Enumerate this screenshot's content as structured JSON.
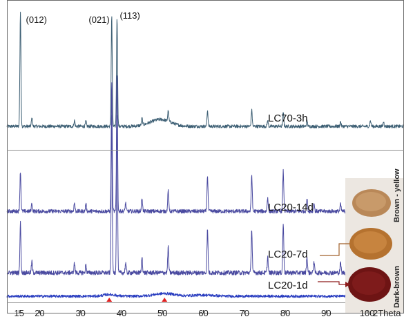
{
  "chart_data": {
    "type": "line",
    "xlabel": "2Theta",
    "xlim": [
      12,
      109
    ],
    "ticks": [
      "15",
      "20",
      "30",
      "40",
      "50",
      "60",
      "70",
      "80",
      "90",
      "100"
    ],
    "tick_values": [
      15,
      20,
      30,
      40,
      50,
      60,
      70,
      80,
      90,
      100
    ],
    "peak_labels": [
      {
        "text": "(012)",
        "x": 15.3
      },
      {
        "text": "(021)",
        "x": 37.6
      },
      {
        "text": "(113)",
        "x": 38.9
      }
    ],
    "series": [
      {
        "name": "LC70-3h",
        "color": "#3d5f74",
        "peaks": [
          [
            15.3,
            1.0
          ],
          [
            18.1,
            0.07
          ],
          [
            28.5,
            0.05
          ],
          [
            31.3,
            0.045
          ],
          [
            37.6,
            0.97
          ],
          [
            38.9,
            0.95
          ],
          [
            45.0,
            0.06
          ],
          [
            51.4,
            0.09
          ],
          [
            61.0,
            0.14
          ],
          [
            71.8,
            0.14
          ],
          [
            75.7,
            0.05
          ],
          [
            79.5,
            0.12
          ],
          [
            85.3,
            0.05
          ],
          [
            93.5,
            0.04
          ],
          [
            100.8,
            0.05
          ],
          [
            104.0,
            0.04
          ]
        ]
      },
      {
        "name": "LC20-14d",
        "color": "#4a4aa0",
        "peaks": [
          [
            15.3,
            0.29
          ],
          [
            18.1,
            0.06
          ],
          [
            28.5,
            0.06
          ],
          [
            31.3,
            0.05
          ],
          [
            37.6,
            0.93
          ],
          [
            38.9,
            1.0
          ],
          [
            41.0,
            0.06
          ],
          [
            45.0,
            0.1
          ],
          [
            51.4,
            0.15
          ],
          [
            61.0,
            0.26
          ],
          [
            71.8,
            0.26
          ],
          [
            75.7,
            0.1
          ],
          [
            79.5,
            0.29
          ],
          [
            85.3,
            0.09
          ],
          [
            87.0,
            0.06
          ],
          [
            93.5,
            0.05
          ],
          [
            97.0,
            0.06
          ],
          [
            98.5,
            0.05
          ],
          [
            100.8,
            0.11
          ]
        ]
      },
      {
        "name": "LC20-7d",
        "color": "#4a4aa0",
        "peaks": [
          [
            15.3,
            0.31
          ],
          [
            18.1,
            0.07
          ],
          [
            28.5,
            0.06
          ],
          [
            31.3,
            0.05
          ],
          [
            37.6,
            0.98
          ],
          [
            38.9,
            1.0
          ],
          [
            41.0,
            0.06
          ],
          [
            45.0,
            0.1
          ],
          [
            51.4,
            0.16
          ],
          [
            61.0,
            0.27
          ],
          [
            71.8,
            0.27
          ],
          [
            75.7,
            0.1
          ],
          [
            79.5,
            0.31
          ],
          [
            85.3,
            0.1
          ],
          [
            87.0,
            0.07
          ],
          [
            93.5,
            0.06
          ],
          [
            97.0,
            0.07
          ],
          [
            98.5,
            0.06
          ],
          [
            100.8,
            0.12
          ]
        ]
      },
      {
        "name": "LC20-1d",
        "color": "#2a3ec0",
        "peaks": [
          [
            37.0,
            0.18
          ],
          [
            50.5,
            0.28
          ],
          [
            60.0,
            0.12
          ]
        ]
      }
    ],
    "markers": [
      {
        "x": 37.0,
        "color": "#e02020"
      },
      {
        "x": 50.5,
        "color": "#e02020"
      }
    ]
  },
  "photo": {
    "labels": {
      "top": "Brown - yellow",
      "bottom": "Dark-brown"
    }
  }
}
